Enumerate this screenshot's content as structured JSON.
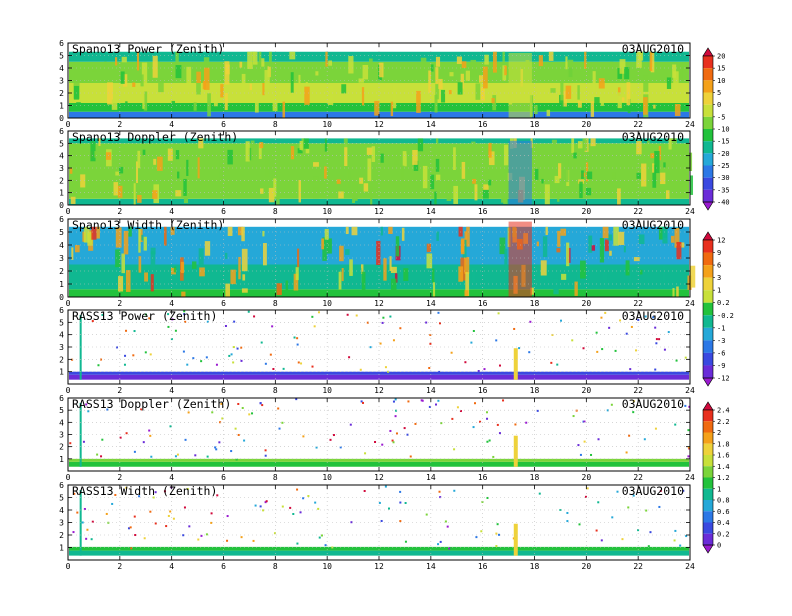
{
  "page": {
    "date_label": "03AUG2010"
  },
  "colorbars": [
    {
      "name": "doppler-power-scale",
      "tick_labels": [
        "20",
        "15",
        "10",
        "5",
        "0",
        "-5",
        "-10",
        "-15",
        "-20",
        "-25",
        "-30",
        "-35",
        "-40"
      ],
      "colors": [
        "#d10a3c",
        "#e8301e",
        "#f06a10",
        "#f4a11a",
        "#eed23a",
        "#c8e03a",
        "#7bd43a",
        "#22c23c",
        "#10b891",
        "#25a8d8",
        "#2c78e6",
        "#3a49e0",
        "#6a2cd8",
        "#9a1ad0"
      ]
    },
    {
      "name": "width-power-scale",
      "tick_labels": [
        "12",
        "9",
        "6",
        "3",
        "1",
        "0.2",
        "-0.2",
        "-1",
        "-3",
        "-6",
        "-9",
        "-12"
      ],
      "colors": [
        "#d10a3c",
        "#e8301e",
        "#f06a10",
        "#f4a11a",
        "#eed23a",
        "#c8e03a",
        "#22c23c",
        "#10b891",
        "#25a8d8",
        "#2c78e6",
        "#3a49e0",
        "#6a2cd8",
        "#9a1ad0"
      ]
    },
    {
      "name": "rass-scale",
      "tick_labels": [
        "2.4",
        "2.2",
        "2",
        "1.8",
        "1.6",
        "1.4",
        "1.2",
        "1",
        "0.8",
        "0.6",
        "0.4",
        "0.2",
        "0"
      ],
      "colors": [
        "#d10a3c",
        "#e8301e",
        "#f06a10",
        "#f4a11a",
        "#eed23a",
        "#c8e03a",
        "#7bd43a",
        "#22c23c",
        "#10b891",
        "#25a8d8",
        "#2c78e6",
        "#3a49e0",
        "#6a2cd8",
        "#9a1ad0"
      ]
    }
  ],
  "chart_data": [
    {
      "type": "heatmap",
      "title": "Spano13 Power (Zenith)",
      "date": "03AUG2010",
      "x_ticks": [
        "0",
        "2",
        "4",
        "6",
        "8",
        "10",
        "12",
        "14",
        "16",
        "18",
        "20",
        "22",
        "24"
      ],
      "y_ticks": [
        "0",
        "1",
        "2",
        "3",
        "4",
        "5",
        "6"
      ],
      "xlim": [
        0,
        24
      ],
      "ylim": [
        0,
        6
      ],
      "colorbar": 0,
      "bands": [
        {
          "y": [
            0.0,
            0.5
          ],
          "color": "#2c78e6"
        },
        {
          "y": [
            0.5,
            1.2
          ],
          "color": "#22c23c"
        },
        {
          "y": [
            1.2,
            2.8
          ],
          "color": "#c8e03a"
        },
        {
          "y": [
            2.8,
            4.5
          ],
          "color": "#7bd43a"
        },
        {
          "y": [
            4.5,
            5.3
          ],
          "color": "#10b891"
        }
      ]
    },
    {
      "type": "heatmap",
      "title": "Spano13 Doppler (Zenith)",
      "date": "03AUG2010",
      "x_ticks": [
        "0",
        "2",
        "4",
        "6",
        "8",
        "10",
        "12",
        "14",
        "16",
        "18",
        "20",
        "22",
        "24"
      ],
      "y_ticks": [
        "0",
        "1",
        "2",
        "3",
        "4",
        "5",
        "6"
      ],
      "xlim": [
        0,
        24
      ],
      "ylim": [
        0,
        6
      ],
      "colorbar": 0,
      "bands": [
        {
          "y": [
            0.0,
            0.5
          ],
          "color": "#10b891"
        },
        {
          "y": [
            0.5,
            5.0
          ],
          "color": "#7bd43a"
        },
        {
          "y": [
            5.0,
            5.4
          ],
          "color": "#10b891"
        }
      ]
    },
    {
      "type": "heatmap",
      "title": "Spano13 Width (Zenith)",
      "date": "03AUG2010",
      "x_ticks": [
        "0",
        "2",
        "4",
        "6",
        "8",
        "10",
        "12",
        "14",
        "16",
        "18",
        "20",
        "22",
        "24"
      ],
      "y_ticks": [
        "0",
        "1",
        "2",
        "3",
        "4",
        "5",
        "6"
      ],
      "xlim": [
        0,
        24
      ],
      "ylim": [
        0,
        6
      ],
      "colorbar": 1,
      "bands": [
        {
          "y": [
            0.0,
            0.6
          ],
          "color": "#22c23c"
        },
        {
          "y": [
            0.6,
            2.5
          ],
          "color": "#10b891"
        },
        {
          "y": [
            2.5,
            5.4
          ],
          "color": "#25a8d8"
        }
      ]
    },
    {
      "type": "heatmap",
      "title": "RASS13 Power (Zenith)",
      "date": "03AUG2010",
      "x_ticks": [
        "0",
        "2",
        "4",
        "6",
        "8",
        "10",
        "12",
        "14",
        "16",
        "18",
        "20",
        "22",
        "24"
      ],
      "y_ticks": [
        "1",
        "2",
        "3",
        "4",
        "5",
        "6"
      ],
      "xlim": [
        0,
        24
      ],
      "ylim": [
        0,
        6
      ],
      "colorbar": 1,
      "bands": [
        {
          "y": [
            0.35,
            0.75
          ],
          "color": "#6a2cd8"
        },
        {
          "y": [
            0.75,
            1.0
          ],
          "color": "#3a49e0"
        }
      ]
    },
    {
      "type": "heatmap",
      "title": "RASS13 Doppler (Zenith)",
      "date": "03AUG2010",
      "x_ticks": [
        "0",
        "2",
        "4",
        "6",
        "8",
        "10",
        "12",
        "14",
        "16",
        "18",
        "20",
        "22",
        "24"
      ],
      "y_ticks": [
        "1",
        "2",
        "3",
        "4",
        "5",
        "6"
      ],
      "xlim": [
        0,
        24
      ],
      "ylim": [
        0,
        6
      ],
      "colorbar": 2,
      "bands": [
        {
          "y": [
            0.35,
            0.75
          ],
          "color": "#22c23c"
        },
        {
          "y": [
            0.75,
            1.0
          ],
          "color": "#7bd43a"
        }
      ]
    },
    {
      "type": "heatmap",
      "title": "RASS13 Width (Zenith)",
      "date": "03AUG2010",
      "x_ticks": [
        "0",
        "2",
        "4",
        "6",
        "8",
        "10",
        "12",
        "14",
        "16",
        "18",
        "20",
        "22",
        "24"
      ],
      "y_ticks": [
        "1",
        "2",
        "3",
        "4",
        "5",
        "6"
      ],
      "xlim": [
        0,
        24
      ],
      "ylim": [
        0,
        6
      ],
      "colorbar": 2,
      "bands": [
        {
          "y": [
            0.35,
            0.75
          ],
          "color": "#10b891"
        },
        {
          "y": [
            0.75,
            1.05
          ],
          "color": "#22c23c"
        }
      ]
    }
  ]
}
